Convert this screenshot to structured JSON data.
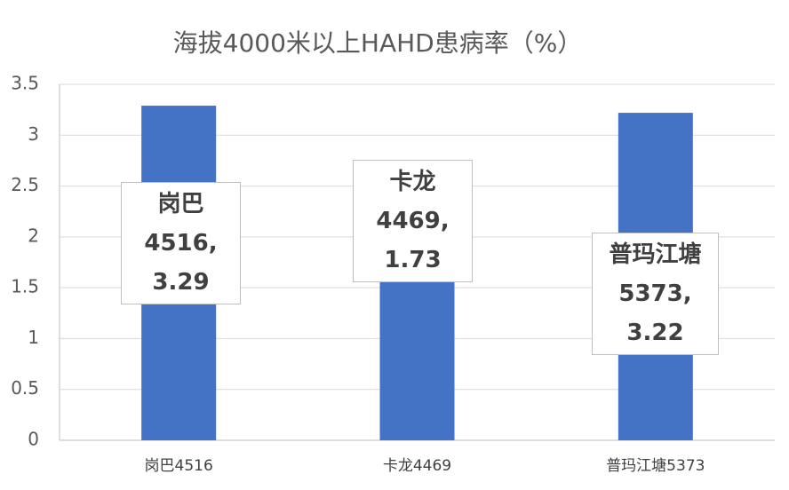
{
  "chart_data": {
    "type": "bar",
    "title": "海拔4000米以上HAHD患病率（%）",
    "categories": [
      "岗巴4516",
      "卡龙4469",
      "普玛江塘5373"
    ],
    "values": [
      3.29,
      1.73,
      3.22
    ],
    "value_labels": [
      "岗巴4516, 3.29",
      "卡龙4469, 1.73",
      "普玛江塘5373, 3.22"
    ],
    "color": "#4472c4",
    "ylim": [
      0,
      3.5
    ],
    "yticks": [
      0,
      0.5,
      1,
      1.5,
      2,
      2.5,
      3,
      3.5
    ],
    "grid": true
  }
}
